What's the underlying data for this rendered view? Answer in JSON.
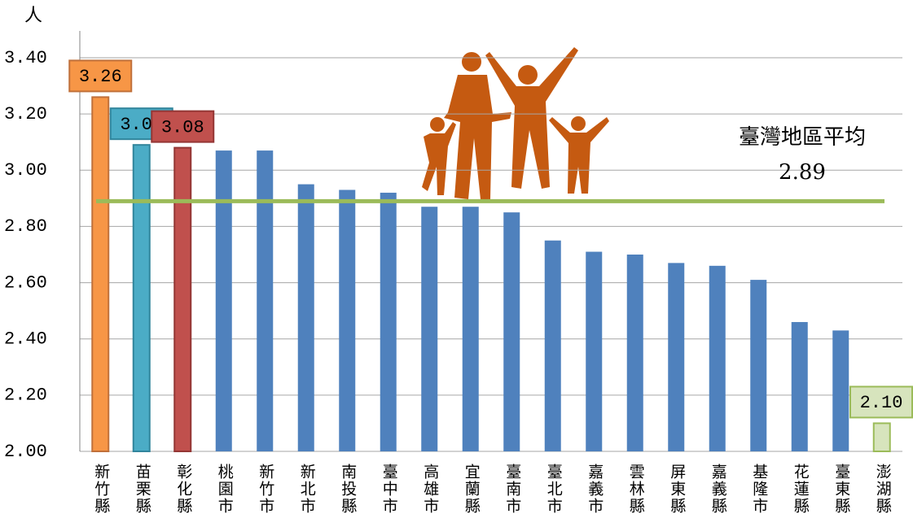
{
  "chart_data": {
    "type": "bar",
    "y_axis_label": "人",
    "categories": [
      "新竹縣",
      "苗栗縣",
      "彰化縣",
      "桃園市",
      "新竹市",
      "新北市",
      "南投縣",
      "臺中市",
      "高雄市",
      "宜蘭縣",
      "臺南市",
      "臺北市",
      "嘉義市",
      "雲林縣",
      "屏東縣",
      "嘉義縣",
      "基隆市",
      "花蓮縣",
      "臺東縣",
      "澎湖縣"
    ],
    "values": [
      3.26,
      3.09,
      3.08,
      3.07,
      3.07,
      2.95,
      2.93,
      2.92,
      2.87,
      2.87,
      2.85,
      2.75,
      2.71,
      2.7,
      2.67,
      2.66,
      2.61,
      2.46,
      2.43,
      2.1
    ],
    "value_labels": [
      "3.26",
      "3.09",
      "3.08",
      null,
      null,
      null,
      null,
      null,
      null,
      null,
      null,
      null,
      null,
      null,
      null,
      null,
      null,
      null,
      null,
      "2.10"
    ],
    "colors": [
      "#f79646",
      "#4bacc6",
      "#c0504d",
      "#4f81bd",
      "#4f81bd",
      "#4f81bd",
      "#4f81bd",
      "#4f81bd",
      "#4f81bd",
      "#4f81bd",
      "#4f81bd",
      "#4f81bd",
      "#4f81bd",
      "#4f81bd",
      "#4f81bd",
      "#4f81bd",
      "#4f81bd",
      "#4f81bd",
      "#4f81bd",
      "#d7e4bd"
    ],
    "label_borders": [
      "#c0703a",
      "#31859c",
      "#943634",
      null,
      null,
      null,
      null,
      null,
      null,
      null,
      null,
      null,
      null,
      null,
      null,
      null,
      null,
      null,
      null,
      "#9bbb59"
    ],
    "average": {
      "label": "臺灣地區平均",
      "value": 2.89,
      "color": "#9bbb59"
    },
    "ylim": [
      2.0,
      3.4
    ],
    "yticks": [
      {
        "value": 2.0,
        "label": "2.00"
      },
      {
        "value": 2.2,
        "label": "2.20"
      },
      {
        "value": 2.4,
        "label": "2.40"
      },
      {
        "value": 2.6,
        "label": "2.60"
      },
      {
        "value": 2.8,
        "label": "2.80"
      },
      {
        "value": 3.0,
        "label": "3.00"
      },
      {
        "value": 3.2,
        "label": "3.20"
      },
      {
        "value": 3.4,
        "label": "3.40"
      }
    ],
    "grid": true
  }
}
